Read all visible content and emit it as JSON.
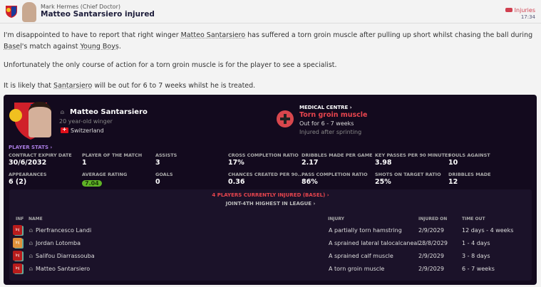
{
  "header": {
    "sender": "Mark Hermes",
    "sender_role": "(Chief Doctor)",
    "subject": "Matteo Santarsiero injured",
    "tag": "Injuries",
    "time": "17:34"
  },
  "message": {
    "p1_a": "I'm disappointed to have to report that right winger ",
    "p1_link1": "Matteo Santarsiero",
    "p1_b": " has suffered a torn groin muscle after pulling up short whilst chasing the ball during ",
    "p1_link2": "Basel",
    "p1_c": "'s match against ",
    "p1_link3": "Young Boys",
    "p1_d": ".",
    "p2": "Unfortunately the only course of action for a torn groin muscle is for the player to see a specialist.",
    "p3_a": "It is likely that ",
    "p3_link": "Santarsiero",
    "p3_b": " will be out for 6 to 7 weeks whilst he is treated."
  },
  "player": {
    "name": "Matteo Santarsiero",
    "description": "20 year-old winger",
    "nationality": "Switzerland"
  },
  "medical": {
    "heading": "MEDICAL CENTRE ›",
    "injury": "Torn groin muscle",
    "out_for": "Out for 6 - 7 weeks",
    "cause": "Injured after sprinting"
  },
  "stats_heading": "PLAYER STATS ›",
  "stats": [
    {
      "label": "CONTRACT EXPIRY DATE",
      "value": "30/6/2032"
    },
    {
      "label": "PLAYER OF THE MATCH",
      "value": "1"
    },
    {
      "label": "ASSISTS",
      "value": "3"
    },
    {
      "label": "CROSS COMPLETION RATIO",
      "value": "17%"
    },
    {
      "label": "DRIBBLES MADE PER GAME",
      "value": "2.17"
    },
    {
      "label": "KEY PASSES PER 90 MINUTES",
      "value": "3.98"
    },
    {
      "label": "FOULS AGAINST",
      "value": "10"
    },
    {
      "label": "APPEARANCES",
      "value": "6 (2)"
    },
    {
      "label": "AVERAGE RATING",
      "value": "7.04"
    },
    {
      "label": "GOALS",
      "value": "0"
    },
    {
      "label": "CHANCES CREATED PER 90...",
      "value": "0.36"
    },
    {
      "label": "PASS COMPLETION RATIO",
      "value": "86%"
    },
    {
      "label": "SHOTS ON TARGET RATIO",
      "value": "25%"
    },
    {
      "label": "DRIBBLES MADE",
      "value": "12"
    }
  ],
  "injuries": {
    "title": "4 PLAYERS CURRENTLY INJURED (BASEL) ›",
    "subtitle": "JOINT-4TH HIGHEST IN LEAGUE ›",
    "columns": [
      "INF",
      "NAME",
      "INJURY",
      "INJURED ON",
      "TIME OUT"
    ],
    "rows": [
      {
        "inf": "Inj",
        "color": "#b81c1c",
        "name": "Pierfrancesco Landi",
        "injury": "A partially torn hamstring",
        "date": "2/9/2029",
        "out": "12 days - 4 weeks"
      },
      {
        "inf": "Inj",
        "color": "#e0903a",
        "name": "Jordan Lotomba",
        "injury": "A sprained lateral talocalcaneal...",
        "date": "28/8/2029",
        "out": "1 - 4 days"
      },
      {
        "inf": "Inj",
        "color": "#b81c1c",
        "name": "Salifou Diarrassouba",
        "injury": "A sprained calf muscle",
        "date": "2/9/2029",
        "out": "3 - 8 days"
      },
      {
        "inf": "Inj",
        "color": "#b81c1c",
        "name": "Matteo Santarsiero",
        "injury": "A torn groin muscle",
        "date": "2/9/2029",
        "out": "6 - 7 weeks"
      }
    ]
  }
}
